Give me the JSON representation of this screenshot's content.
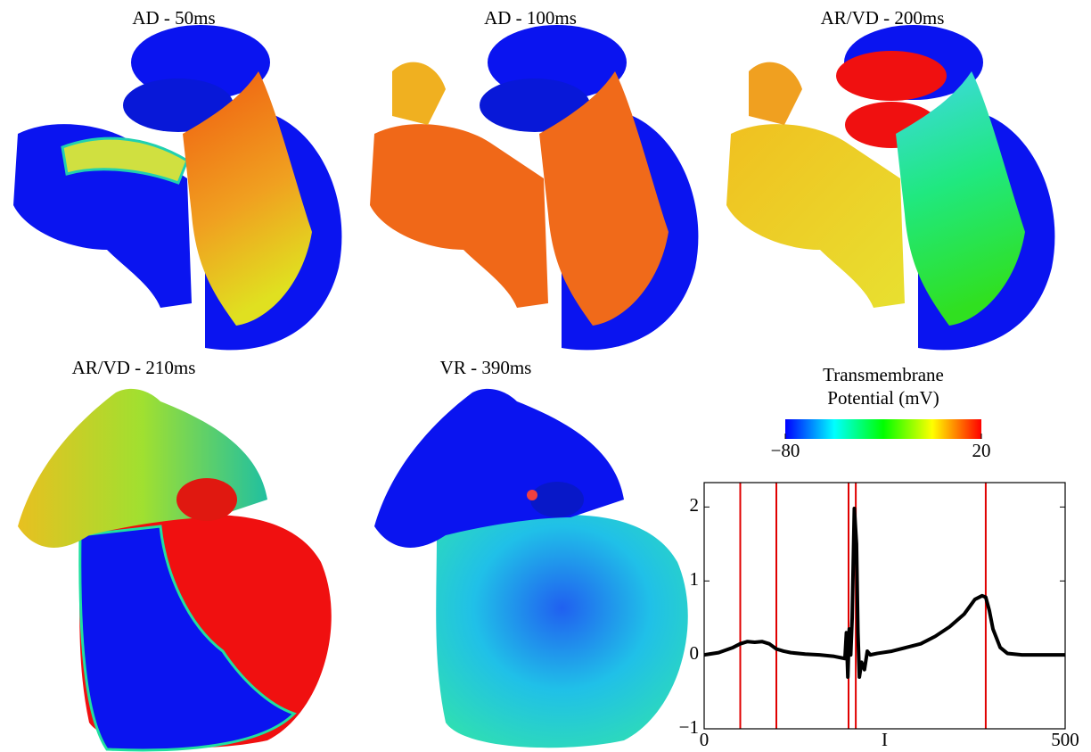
{
  "panels": [
    {
      "title": "AD - 50ms"
    },
    {
      "title": "AD - 100ms"
    },
    {
      "title": "AR/VD - 200ms"
    },
    {
      "title": "AR/VD - 210ms"
    },
    {
      "title": "VR - 390ms"
    }
  ],
  "colorbar": {
    "label": "Transmembrane Potential (mV)",
    "lim": [
      -80,
      20
    ],
    "ticks": [
      {
        "value": -80,
        "label": "−80"
      },
      20
    ],
    "colors": [
      "#0000ff",
      "#00ffff",
      "#00ff00",
      "#ffff00",
      "#ff0000"
    ]
  },
  "chart_data": {
    "type": "line",
    "xlabel": "I",
    "color": "#000000",
    "x": [
      0,
      20,
      40,
      50,
      60,
      70,
      80,
      90,
      100,
      110,
      120,
      140,
      160,
      180,
      195,
      197,
      199,
      201,
      203,
      205,
      208,
      211,
      213,
      215,
      218,
      222,
      226,
      230,
      240,
      260,
      280,
      300,
      320,
      340,
      360,
      375,
      385,
      390,
      395,
      400,
      410,
      420,
      440,
      500
    ],
    "values": [
      0,
      0.03,
      0.1,
      0.15,
      0.18,
      0.17,
      0.18,
      0.15,
      0.08,
      0.05,
      0.03,
      0.01,
      0,
      -0.02,
      -0.05,
      0.3,
      -0.3,
      0.35,
      0,
      0.5,
      1.98,
      1.5,
      0.3,
      -0.3,
      -0.1,
      -0.2,
      0.05,
      0,
      0.02,
      0.05,
      0.1,
      0.15,
      0.25,
      0.38,
      0.55,
      0.75,
      0.8,
      0.78,
      0.6,
      0.35,
      0.1,
      0.02,
      0,
      0
    ],
    "vlines": [
      50,
      100,
      200,
      210,
      390
    ],
    "vline_color": "#e00000",
    "xlim": [
      0,
      500
    ],
    "xticks": [
      0,
      500
    ],
    "ylim": [
      -1,
      2.33
    ],
    "yticks": [
      {
        "value": -1,
        "label": "−1"
      },
      0,
      1,
      2
    ]
  }
}
